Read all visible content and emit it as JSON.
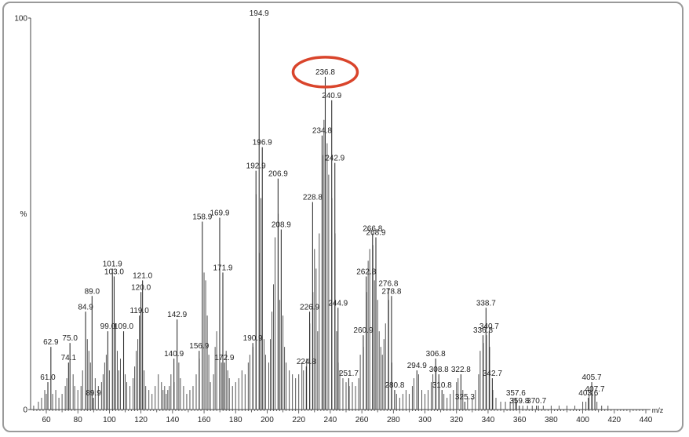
{
  "chart_data": {
    "type": "bar",
    "title": "",
    "xlabel": "m/z",
    "ylabel": "%",
    "xlim": [
      50,
      440
    ],
    "ylim": [
      0,
      100
    ],
    "y_ticks": [
      0,
      100
    ],
    "x_ticks": [
      60,
      80,
      100,
      120,
      140,
      160,
      180,
      200,
      220,
      240,
      260,
      280,
      300,
      320,
      340,
      360,
      380,
      400,
      420,
      440
    ],
    "highlight": {
      "label": "236.8",
      "color": "#d9442b"
    },
    "labeled_peaks": [
      {
        "x": 61.0,
        "y": 7,
        "label": "61.0"
      },
      {
        "x": 62.9,
        "y": 16,
        "label": "62.9"
      },
      {
        "x": 74.1,
        "y": 12,
        "label": "74.1"
      },
      {
        "x": 75.0,
        "y": 17,
        "label": "75.0"
      },
      {
        "x": 84.9,
        "y": 25,
        "label": "84.9"
      },
      {
        "x": 89.0,
        "y": 29,
        "label": "89.0"
      },
      {
        "x": 89.9,
        "y": 3,
        "label": "89.9"
      },
      {
        "x": 99.0,
        "y": 20,
        "label": "99.0"
      },
      {
        "x": 101.9,
        "y": 36,
        "label": "101.9"
      },
      {
        "x": 103.0,
        "y": 34,
        "label": "103.0"
      },
      {
        "x": 109.0,
        "y": 20,
        "label": "109.0"
      },
      {
        "x": 119.0,
        "y": 24,
        "label": "119.0"
      },
      {
        "x": 120.0,
        "y": 30,
        "label": "120.0"
      },
      {
        "x": 121.0,
        "y": 33,
        "label": "121.0"
      },
      {
        "x": 140.9,
        "y": 13,
        "label": "140.9"
      },
      {
        "x": 142.9,
        "y": 23,
        "label": "142.9"
      },
      {
        "x": 156.9,
        "y": 15,
        "label": "156.9"
      },
      {
        "x": 158.9,
        "y": 48,
        "label": "158.9"
      },
      {
        "x": 169.9,
        "y": 49,
        "label": "169.9"
      },
      {
        "x": 171.9,
        "y": 35,
        "label": "171.9"
      },
      {
        "x": 172.9,
        "y": 12,
        "label": "172.9"
      },
      {
        "x": 190.9,
        "y": 17,
        "label": "190.9"
      },
      {
        "x": 192.9,
        "y": 61,
        "label": "192.9"
      },
      {
        "x": 194.9,
        "y": 100,
        "label": "194.9"
      },
      {
        "x": 196.9,
        "y": 67,
        "label": "196.9"
      },
      {
        "x": 206.9,
        "y": 59,
        "label": "206.9"
      },
      {
        "x": 208.9,
        "y": 46,
        "label": "208.9"
      },
      {
        "x": 224.8,
        "y": 11,
        "label": "224.8"
      },
      {
        "x": 226.9,
        "y": 25,
        "label": "226.9"
      },
      {
        "x": 228.8,
        "y": 53,
        "label": "228.8"
      },
      {
        "x": 234.8,
        "y": 70,
        "label": "234.8"
      },
      {
        "x": 236.8,
        "y": 85,
        "label": "236.8"
      },
      {
        "x": 240.9,
        "y": 79,
        "label": "240.9"
      },
      {
        "x": 242.9,
        "y": 63,
        "label": "242.9"
      },
      {
        "x": 244.9,
        "y": 26,
        "label": "244.9"
      },
      {
        "x": 251.7,
        "y": 8,
        "label": "251.7"
      },
      {
        "x": 260.9,
        "y": 19,
        "label": "260.9"
      },
      {
        "x": 262.8,
        "y": 34,
        "label": "262.8"
      },
      {
        "x": 266.8,
        "y": 45,
        "label": "266.8"
      },
      {
        "x": 268.9,
        "y": 44,
        "label": "268.9"
      },
      {
        "x": 276.8,
        "y": 31,
        "label": "276.8"
      },
      {
        "x": 278.8,
        "y": 29,
        "label": "278.8"
      },
      {
        "x": 280.8,
        "y": 5,
        "label": "280.8"
      },
      {
        "x": 294.9,
        "y": 10,
        "label": "294.9"
      },
      {
        "x": 306.8,
        "y": 13,
        "label": "306.8"
      },
      {
        "x": 308.8,
        "y": 9,
        "label": "308.8"
      },
      {
        "x": 310.8,
        "y": 5,
        "label": "310.8"
      },
      {
        "x": 322.8,
        "y": 9,
        "label": "322.8"
      },
      {
        "x": 325.3,
        "y": 2,
        "label": "325.3"
      },
      {
        "x": 336.8,
        "y": 19,
        "label": "336.8"
      },
      {
        "x": 338.7,
        "y": 26,
        "label": "338.7"
      },
      {
        "x": 340.7,
        "y": 20,
        "label": "340.7"
      },
      {
        "x": 342.7,
        "y": 8,
        "label": "342.7"
      },
      {
        "x": 357.6,
        "y": 3,
        "label": "357.6"
      },
      {
        "x": 359.8,
        "y": 1,
        "label": "359.8"
      },
      {
        "x": 370.7,
        "y": 1,
        "label": "370.7"
      },
      {
        "x": 403.6,
        "y": 3,
        "label": "403.6"
      },
      {
        "x": 405.7,
        "y": 7,
        "label": "405.7"
      },
      {
        "x": 407.7,
        "y": 4,
        "label": "407.7"
      }
    ],
    "minor_peaks": [
      [
        52,
        1
      ],
      [
        55,
        2
      ],
      [
        57,
        3
      ],
      [
        59,
        5
      ],
      [
        60,
        4
      ],
      [
        64,
        4
      ],
      [
        66,
        5
      ],
      [
        68,
        3
      ],
      [
        70,
        4
      ],
      [
        72,
        6
      ],
      [
        73,
        8
      ],
      [
        77,
        9
      ],
      [
        78,
        6
      ],
      [
        80,
        5
      ],
      [
        82,
        6
      ],
      [
        83,
        10
      ],
      [
        86,
        18
      ],
      [
        87,
        15
      ],
      [
        88,
        12
      ],
      [
        91,
        8
      ],
      [
        93,
        6
      ],
      [
        95,
        7
      ],
      [
        96,
        9
      ],
      [
        97,
        12
      ],
      [
        98,
        14
      ],
      [
        100,
        10
      ],
      [
        104,
        22
      ],
      [
        105,
        15
      ],
      [
        106,
        10
      ],
      [
        107,
        13
      ],
      [
        110,
        9
      ],
      [
        111,
        7
      ],
      [
        113,
        6
      ],
      [
        115,
        8
      ],
      [
        116,
        11
      ],
      [
        117,
        15
      ],
      [
        118,
        18
      ],
      [
        122,
        10
      ],
      [
        123,
        6
      ],
      [
        125,
        5
      ],
      [
        127,
        4
      ],
      [
        129,
        6
      ],
      [
        131,
        9
      ],
      [
        133,
        7
      ],
      [
        134,
        5
      ],
      [
        135,
        6
      ],
      [
        136,
        4
      ],
      [
        137,
        5
      ],
      [
        138,
        6
      ],
      [
        139,
        9
      ],
      [
        141,
        7
      ],
      [
        144,
        12
      ],
      [
        145,
        8
      ],
      [
        147,
        6
      ],
      [
        149,
        4
      ],
      [
        151,
        5
      ],
      [
        153,
        6
      ],
      [
        155,
        9
      ],
      [
        157,
        13
      ],
      [
        160,
        35
      ],
      [
        161,
        33
      ],
      [
        162,
        24
      ],
      [
        163,
        14
      ],
      [
        164,
        7
      ],
      [
        166,
        9
      ],
      [
        167,
        16
      ],
      [
        168,
        20
      ],
      [
        171,
        12
      ],
      [
        174,
        15
      ],
      [
        175,
        10
      ],
      [
        176,
        8
      ],
      [
        178,
        6
      ],
      [
        180,
        7
      ],
      [
        182,
        8
      ],
      [
        184,
        10
      ],
      [
        186,
        9
      ],
      [
        188,
        12
      ],
      [
        189,
        14
      ],
      [
        191,
        16
      ],
      [
        193,
        55
      ],
      [
        195,
        40
      ],
      [
        196,
        54
      ],
      [
        198,
        18
      ],
      [
        199,
        14
      ],
      [
        201,
        12
      ],
      [
        202,
        18
      ],
      [
        203,
        25
      ],
      [
        204,
        32
      ],
      [
        205,
        44
      ],
      [
        207,
        50
      ],
      [
        208,
        28
      ],
      [
        210,
        24
      ],
      [
        211,
        16
      ],
      [
        212,
        12
      ],
      [
        214,
        10
      ],
      [
        216,
        9
      ],
      [
        218,
        8
      ],
      [
        220,
        9
      ],
      [
        222,
        12
      ],
      [
        223,
        10
      ],
      [
        225,
        13
      ],
      [
        227,
        22
      ],
      [
        229,
        30
      ],
      [
        230,
        41
      ],
      [
        231,
        36
      ],
      [
        232,
        20
      ],
      [
        233,
        45
      ],
      [
        235,
        65
      ],
      [
        236,
        74
      ],
      [
        238,
        68
      ],
      [
        239,
        60
      ],
      [
        241,
        54
      ],
      [
        243,
        45
      ],
      [
        244,
        20
      ],
      [
        245,
        12
      ],
      [
        246,
        10
      ],
      [
        248,
        8
      ],
      [
        250,
        7
      ],
      [
        252,
        6
      ],
      [
        254,
        7
      ],
      [
        256,
        6
      ],
      [
        258,
        8
      ],
      [
        259,
        14
      ],
      [
        261,
        16
      ],
      [
        263,
        30
      ],
      [
        264,
        38
      ],
      [
        265,
        41
      ],
      [
        267,
        42
      ],
      [
        268,
        33
      ],
      [
        270,
        28
      ],
      [
        271,
        20
      ],
      [
        272,
        16
      ],
      [
        273,
        14
      ],
      [
        274,
        18
      ],
      [
        275,
        22
      ],
      [
        277,
        28
      ],
      [
        279,
        12
      ],
      [
        282,
        4
      ],
      [
        284,
        3
      ],
      [
        286,
        4
      ],
      [
        288,
        5
      ],
      [
        290,
        4
      ],
      [
        292,
        6
      ],
      [
        293,
        8
      ],
      [
        296,
        9
      ],
      [
        298,
        5
      ],
      [
        300,
        4
      ],
      [
        302,
        5
      ],
      [
        304,
        7
      ],
      [
        305,
        9
      ],
      [
        307,
        11
      ],
      [
        309,
        7
      ],
      [
        312,
        4
      ],
      [
        314,
        3
      ],
      [
        316,
        4
      ],
      [
        318,
        5
      ],
      [
        320,
        7
      ],
      [
        321,
        8
      ],
      [
        324,
        5
      ],
      [
        327,
        3
      ],
      [
        330,
        3
      ],
      [
        332,
        5
      ],
      [
        334,
        9
      ],
      [
        335,
        15
      ],
      [
        337,
        17
      ],
      [
        339,
        19
      ],
      [
        341,
        16
      ],
      [
        343,
        5
      ],
      [
        345,
        3
      ],
      [
        348,
        2
      ],
      [
        351,
        2
      ],
      [
        354,
        2
      ],
      [
        356,
        3
      ],
      [
        358,
        2
      ],
      [
        362,
        1
      ],
      [
        365,
        1
      ],
      [
        368,
        1
      ],
      [
        372,
        1
      ],
      [
        375,
        1
      ],
      [
        380,
        1
      ],
      [
        385,
        1
      ],
      [
        390,
        1
      ],
      [
        395,
        1
      ],
      [
        400,
        2
      ],
      [
        402,
        2
      ],
      [
        404,
        5
      ],
      [
        406,
        5
      ],
      [
        409,
        2
      ],
      [
        412,
        1
      ],
      [
        416,
        1
      ]
    ]
  }
}
